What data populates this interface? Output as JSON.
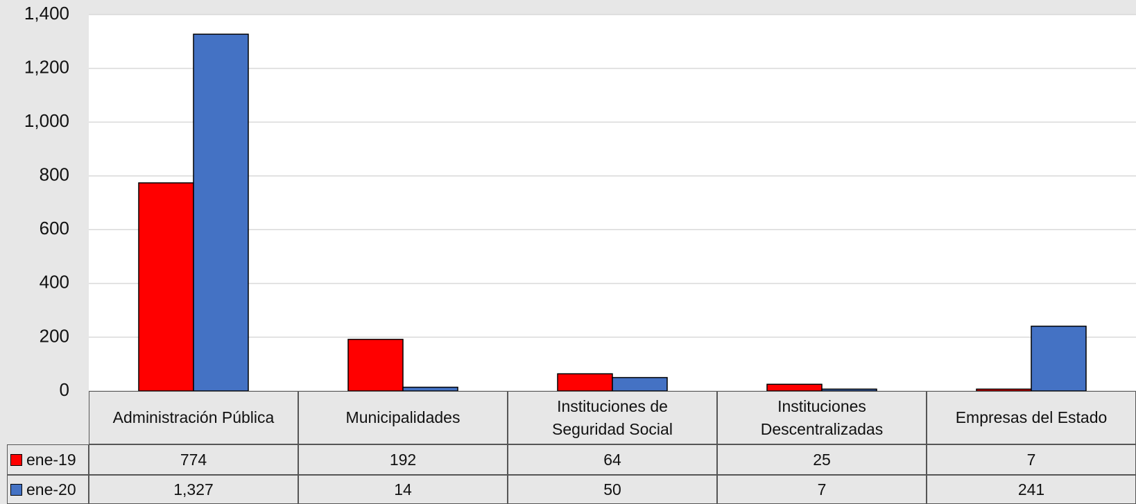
{
  "chart_data": {
    "type": "bar",
    "categories": [
      "Administración Pública",
      "Municipalidades",
      "Instituciones de Seguridad Social",
      "Instituciones Descentralizadas",
      "Empresas del Estado"
    ],
    "series": [
      {
        "name": "ene-19",
        "color": "#ff0000",
        "values": [
          774,
          192,
          64,
          25,
          7
        ]
      },
      {
        "name": "ene-20",
        "color": "#4472c4",
        "values": [
          1327,
          14,
          50,
          7,
          241
        ],
        "value_labels": [
          "1,327",
          "14",
          "50",
          "7",
          "241"
        ]
      }
    ],
    "ylim": [
      0,
      1400
    ],
    "yticks": [
      0,
      200,
      400,
      600,
      800,
      {
        "value": 1000,
        "label": "1,000"
      },
      {
        "value": 1200,
        "label": "1,200"
      },
      {
        "value": 1400,
        "label": "1,400"
      }
    ],
    "grid": true,
    "data_table": true
  }
}
